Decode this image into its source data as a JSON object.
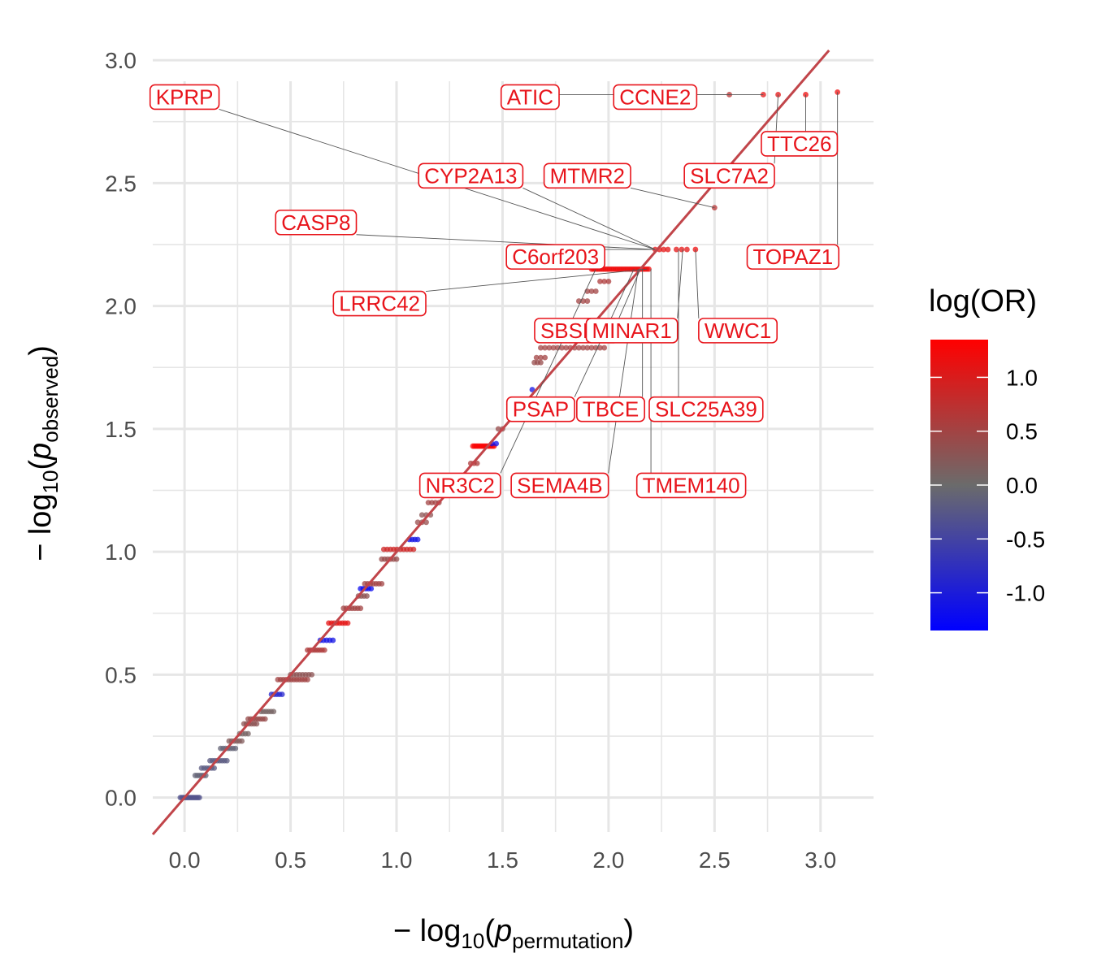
{
  "chart_data": {
    "type": "scatter",
    "xlabel": {
      "prefix": "− log",
      "base": "10",
      "open": "(",
      "var": "p",
      "sub": "permutation",
      "close": ")"
    },
    "ylabel": {
      "prefix": "− log",
      "base": "10",
      "open": "(",
      "var": "p",
      "sub": "observed",
      "close": ")"
    },
    "xlim": [
      -0.15,
      3.25
    ],
    "ylim": [
      -0.14,
      3.04
    ],
    "x_ticks": [
      "0.0",
      "0.5",
      "1.0",
      "1.5",
      "2.0",
      "2.5",
      "3.0"
    ],
    "y_ticks": [
      "0.0",
      "0.5",
      "1.0",
      "1.5",
      "2.0",
      "2.5",
      "3.0"
    ],
    "grid": true,
    "reference_line": {
      "slope": 1,
      "intercept": 0,
      "color": "#c1454a"
    },
    "color_scale": {
      "title": "log(OR)",
      "low": "#0000ff",
      "mid": "#6b6b6b",
      "high": "#ff0000",
      "domain": [
        -1.35,
        1.35
      ],
      "ticks": [
        "1.0",
        "0.5",
        "0.0",
        "-0.5",
        "-1.0"
      ],
      "tick_values": [
        1.0,
        0.5,
        0.0,
        -0.5,
        -1.0
      ]
    },
    "point_runs": [
      {
        "x0": -0.02,
        "x1": 0.07,
        "y": 0.0,
        "n": 14,
        "c": -0.3
      },
      {
        "x0": 0.05,
        "x1": 0.1,
        "y": 0.09,
        "n": 6,
        "c": -0.1
      },
      {
        "x0": 0.08,
        "x1": 0.14,
        "y": 0.12,
        "n": 6,
        "c": -0.2
      },
      {
        "x0": 0.12,
        "x1": 0.2,
        "y": 0.15,
        "n": 8,
        "c": -0.2
      },
      {
        "x0": 0.17,
        "x1": 0.24,
        "y": 0.2,
        "n": 7,
        "c": -0.1
      },
      {
        "x0": 0.21,
        "x1": 0.27,
        "y": 0.23,
        "n": 6,
        "c": 0.2
      },
      {
        "x0": 0.26,
        "x1": 0.3,
        "y": 0.26,
        "n": 4,
        "c": 0.1
      },
      {
        "x0": 0.28,
        "x1": 0.34,
        "y": 0.3,
        "n": 6,
        "c": 0.3
      },
      {
        "x0": 0.3,
        "x1": 0.38,
        "y": 0.32,
        "n": 8,
        "c": 0.4
      },
      {
        "x0": 0.36,
        "x1": 0.42,
        "y": 0.35,
        "n": 6,
        "c": 0.1
      },
      {
        "x0": 0.41,
        "x1": 0.46,
        "y": 0.42,
        "n": 5,
        "c": -0.9
      },
      {
        "x0": 0.44,
        "x1": 0.58,
        "y": 0.48,
        "n": 12,
        "c": 0.5
      },
      {
        "x0": 0.5,
        "x1": 0.6,
        "y": 0.5,
        "n": 8,
        "c": 0.3
      },
      {
        "x0": 0.58,
        "x1": 0.66,
        "y": 0.6,
        "n": 8,
        "c": 0.6
      },
      {
        "x0": 0.64,
        "x1": 0.7,
        "y": 0.64,
        "n": 5,
        "c": -1.1
      },
      {
        "x0": 0.68,
        "x1": 0.77,
        "y": 0.71,
        "n": 8,
        "c": 1.1
      },
      {
        "x0": 0.75,
        "x1": 0.83,
        "y": 0.77,
        "n": 7,
        "c": 0.5
      },
      {
        "x0": 0.82,
        "x1": 0.86,
        "y": 0.82,
        "n": 4,
        "c": 0.3
      },
      {
        "x0": 0.83,
        "x1": 0.88,
        "y": 0.85,
        "n": 5,
        "c": -1.2
      },
      {
        "x0": 0.85,
        "x1": 0.93,
        "y": 0.87,
        "n": 7,
        "c": 0.5
      },
      {
        "x0": 0.93,
        "x1": 1.0,
        "y": 0.97,
        "n": 6,
        "c": 0.4
      },
      {
        "x0": 0.94,
        "x1": 1.08,
        "y": 1.01,
        "n": 10,
        "c": 0.9
      },
      {
        "x0": 1.06,
        "x1": 1.1,
        "y": 1.05,
        "n": 4,
        "c": -1.1
      },
      {
        "x0": 1.1,
        "x1": 1.14,
        "y": 1.12,
        "n": 3,
        "c": 0.4
      },
      {
        "x0": 1.12,
        "x1": 1.16,
        "y": 1.15,
        "n": 3,
        "c": 0.3
      },
      {
        "x0": 1.15,
        "x1": 1.2,
        "y": 1.2,
        "n": 4,
        "c": 0.5
      },
      {
        "x0": 1.32,
        "x1": 1.36,
        "y": 1.3,
        "n": 3,
        "c": 0.5
      },
      {
        "x0": 1.35,
        "x1": 1.38,
        "y": 1.36,
        "n": 3,
        "c": 0.6
      },
      {
        "x0": 1.36,
        "x1": 1.46,
        "y": 1.43,
        "n": 14,
        "c": 1.3
      },
      {
        "x0": 1.45,
        "x1": 1.47,
        "y": 1.44,
        "n": 2,
        "c": -1.2
      },
      {
        "x0": 1.48,
        "x1": 1.5,
        "y": 1.5,
        "n": 2,
        "c": 0.4
      },
      {
        "x0": 1.53,
        "x1": 1.57,
        "y": 1.6,
        "n": 2,
        "c": 0.5
      },
      {
        "x0": 1.6,
        "x1": 1.62,
        "y": 1.61,
        "n": 1,
        "c": 0.5
      },
      {
        "x0": 1.64,
        "x1": 1.66,
        "y": 1.66,
        "n": 1,
        "c": -1.1
      },
      {
        "x0": 1.65,
        "x1": 1.68,
        "y": 1.77,
        "n": 3,
        "c": 0.4
      },
      {
        "x0": 1.66,
        "x1": 1.7,
        "y": 1.79,
        "n": 3,
        "c": 0.5
      },
      {
        "x0": 1.68,
        "x1": 1.98,
        "y": 1.83,
        "n": 16,
        "c": 0.5
      },
      {
        "x0": 1.86,
        "x1": 1.9,
        "y": 2.02,
        "n": 3,
        "c": 0.5
      },
      {
        "x0": 1.9,
        "x1": 1.94,
        "y": 2.06,
        "n": 3,
        "c": 0.5
      },
      {
        "x0": 1.96,
        "x1": 2.0,
        "y": 2.1,
        "n": 3,
        "c": 0.6
      },
      {
        "x0": 1.92,
        "x1": 2.19,
        "y": 2.15,
        "n": 30,
        "c": 1.2
      },
      {
        "x0": 2.22,
        "x1": 2.28,
        "y": 2.23,
        "n": 4,
        "c": 1.1
      },
      {
        "x0": 2.32,
        "x1": 2.37,
        "y": 2.23,
        "n": 3,
        "c": 1.1
      }
    ],
    "points": [
      {
        "x": 2.41,
        "y": 2.23,
        "c": 1.2
      },
      {
        "x": 2.5,
        "y": 2.4,
        "c": 0.7
      },
      {
        "x": 2.57,
        "y": 2.86,
        "c": 0.7
      },
      {
        "x": 2.73,
        "y": 2.86,
        "c": 1.1
      },
      {
        "x": 2.8,
        "y": 2.86,
        "c": 1.1
      },
      {
        "x": 2.93,
        "y": 2.86,
        "c": 1.2
      },
      {
        "x": 3.08,
        "y": 2.87,
        "c": 1.2
      }
    ],
    "labels": [
      {
        "text": "KPRP",
        "lx": 0.0,
        "ly": 2.85,
        "px": 2.22,
        "py": 2.23
      },
      {
        "text": "ATIC",
        "lx": 1.63,
        "ly": 2.85,
        "px": 2.73,
        "py": 2.86
      },
      {
        "text": "CCNE2",
        "lx": 2.22,
        "ly": 2.85,
        "px": 2.57,
        "py": 2.86
      },
      {
        "text": "TTC26",
        "lx": 2.9,
        "ly": 2.66,
        "px": 2.93,
        "py": 2.86
      },
      {
        "text": "CYP2A13",
        "lx": 1.35,
        "ly": 2.53,
        "px": 2.22,
        "py": 2.23
      },
      {
        "text": "MTMR2",
        "lx": 1.9,
        "ly": 2.53,
        "px": 2.5,
        "py": 2.4
      },
      {
        "text": "SLC7A2",
        "lx": 2.57,
        "ly": 2.53,
        "px": 2.8,
        "py": 2.86
      },
      {
        "text": "CASP8",
        "lx": 0.62,
        "ly": 2.34,
        "px": 2.22,
        "py": 2.23
      },
      {
        "text": "C6orf203",
        "lx": 1.75,
        "ly": 2.2,
        "px": 2.22,
        "py": 2.23
      },
      {
        "text": "TOPAZ1",
        "lx": 2.87,
        "ly": 2.2,
        "px": 3.08,
        "py": 2.87
      },
      {
        "text": "LRRC42",
        "lx": 0.92,
        "ly": 2.01,
        "px": 2.18,
        "py": 2.15
      },
      {
        "text": "SBSPO",
        "lx": 1.85,
        "ly": 1.9,
        "px": 2.15,
        "py": 2.15
      },
      {
        "text": "MINAR1",
        "lx": 2.11,
        "ly": 1.9,
        "px": 2.35,
        "py": 2.23
      },
      {
        "text": "WWC1",
        "lx": 2.61,
        "ly": 1.9,
        "px": 2.41,
        "py": 2.23
      },
      {
        "text": "PSAP",
        "lx": 1.68,
        "ly": 1.58,
        "px": 2.12,
        "py": 2.15
      },
      {
        "text": "TBCE",
        "lx": 2.01,
        "ly": 1.58,
        "px": 2.16,
        "py": 2.15
      },
      {
        "text": "SLC25A39",
        "lx": 2.46,
        "ly": 1.58,
        "px": 2.33,
        "py": 2.23
      },
      {
        "text": "NR3C2",
        "lx": 1.3,
        "ly": 1.27,
        "px": 1.94,
        "py": 2.15
      },
      {
        "text": "SEMA4B",
        "lx": 1.77,
        "ly": 1.27,
        "px": 2.14,
        "py": 2.15
      },
      {
        "text": "TMEM140",
        "lx": 2.39,
        "ly": 1.27,
        "px": 2.2,
        "py": 2.15
      }
    ]
  }
}
